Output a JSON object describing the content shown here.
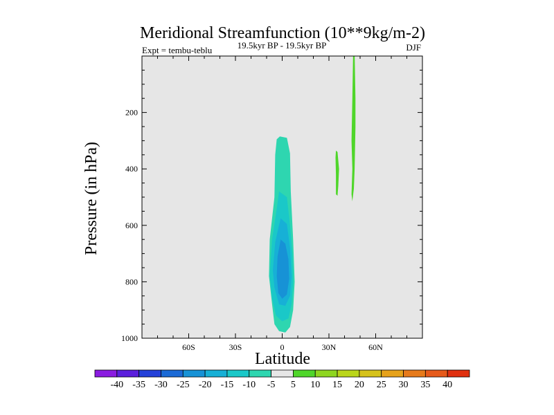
{
  "chart_data": {
    "type": "contour",
    "title": "Meridional Streamfunction (10**9kg/m-2)",
    "subtitle_left": "Expt = tembu-teblu",
    "subtitle_center": "19.5kyr BP - 19.5kyr BP",
    "subtitle_right": "DJF",
    "xlabel": "Latitude",
    "ylabel": "Pressure (in hPa)",
    "xlim": [
      -90,
      90
    ],
    "ylim": [
      1000,
      0
    ],
    "x_ticks": [
      {
        "value": -60,
        "label": "60S"
      },
      {
        "value": -30,
        "label": "30S"
      },
      {
        "value": 0,
        "label": "0"
      },
      {
        "value": 30,
        "label": "30N"
      },
      {
        "value": 60,
        "label": "60N"
      }
    ],
    "y_ticks": [
      {
        "value": 200,
        "label": "200"
      },
      {
        "value": 400,
        "label": "400"
      },
      {
        "value": 600,
        "label": "600"
      },
      {
        "value": 800,
        "label": "800"
      },
      {
        "value": 1000,
        "label": "1000"
      }
    ],
    "background_color": "#e6e6e6",
    "colorbar": {
      "levels": [
        -40,
        -35,
        -30,
        -25,
        -20,
        -15,
        -10,
        -5,
        5,
        10,
        15,
        20,
        25,
        30,
        35,
        40
      ],
      "colors": [
        "#8a1be0",
        "#5b1fdc",
        "#2441d9",
        "#1b6ad6",
        "#1792d6",
        "#17b0d6",
        "#1ac8c8",
        "#2ed6b0",
        "#e6e6e6",
        "#4fd62a",
        "#8ed620",
        "#bad61a",
        "#d6c21a",
        "#e6a21a",
        "#e67a1a",
        "#e65a1a",
        "#e0300f"
      ]
    },
    "regions": [
      {
        "name": "southern-cell-outer",
        "level": -5,
        "color": "#2ed6b0",
        "points": [
          [
            -1.5,
            285
          ],
          [
            3,
            290
          ],
          [
            5,
            345
          ],
          [
            5.5,
            480
          ],
          [
            7,
            650
          ],
          [
            8,
            800
          ],
          [
            7,
            900
          ],
          [
            5,
            960
          ],
          [
            2,
            980
          ],
          [
            -2,
            975
          ],
          [
            -5,
            950
          ],
          [
            -6.5,
            880
          ],
          [
            -8.5,
            780
          ],
          [
            -8,
            650
          ],
          [
            -5,
            500
          ],
          [
            -4.5,
            350
          ],
          [
            -3.5,
            295
          ]
        ]
      },
      {
        "name": "southern-cell-10",
        "level": -10,
        "color": "#1ac8c8",
        "points": [
          [
            -2,
            480
          ],
          [
            3,
            500
          ],
          [
            5,
            600
          ],
          [
            6.5,
            700
          ],
          [
            7,
            800
          ],
          [
            6,
            880
          ],
          [
            4,
            930
          ],
          [
            0,
            940
          ],
          [
            -4,
            920
          ],
          [
            -6.5,
            860
          ],
          [
            -8,
            780
          ],
          [
            -6.5,
            650
          ],
          [
            -4,
            560
          ]
        ]
      },
      {
        "name": "southern-cell-15",
        "level": -15,
        "color": "#17b0d6",
        "points": [
          [
            -1,
            575
          ],
          [
            3,
            595
          ],
          [
            5,
            680
          ],
          [
            6,
            780
          ],
          [
            5,
            850
          ],
          [
            2,
            885
          ],
          [
            -2,
            880
          ],
          [
            -5,
            820
          ],
          [
            -6,
            760
          ],
          [
            -4.5,
            660
          ],
          [
            -2.5,
            610
          ]
        ]
      },
      {
        "name": "southern-cell-20",
        "level": -20,
        "color": "#1792d6",
        "points": [
          [
            -1,
            650
          ],
          [
            2,
            665
          ],
          [
            4,
            720
          ],
          [
            4.5,
            790
          ],
          [
            3,
            845
          ],
          [
            0,
            860
          ],
          [
            -2.5,
            840
          ],
          [
            -3.5,
            780
          ],
          [
            -3,
            710
          ]
        ]
      },
      {
        "name": "northern-cell-jet",
        "level": 5,
        "color": "#4fd62a",
        "points": [
          [
            45.5,
            -10
          ],
          [
            46.5,
            -10
          ],
          [
            47,
            150
          ],
          [
            47,
            250
          ],
          [
            46.5,
            400
          ],
          [
            46,
            470
          ],
          [
            45,
            515
          ],
          [
            44.5,
            490
          ],
          [
            45,
            400
          ],
          [
            44.5,
            300
          ],
          [
            45,
            150
          ]
        ]
      },
      {
        "name": "northern-cell-small",
        "level": 5,
        "color": "#4fd62a",
        "points": [
          [
            34.5,
            335
          ],
          [
            35.5,
            340
          ],
          [
            36.5,
            400
          ],
          [
            36,
            460
          ],
          [
            35.5,
            495
          ],
          [
            34.5,
            490
          ],
          [
            34.5,
            420
          ],
          [
            34.2,
            360
          ]
        ]
      }
    ]
  }
}
